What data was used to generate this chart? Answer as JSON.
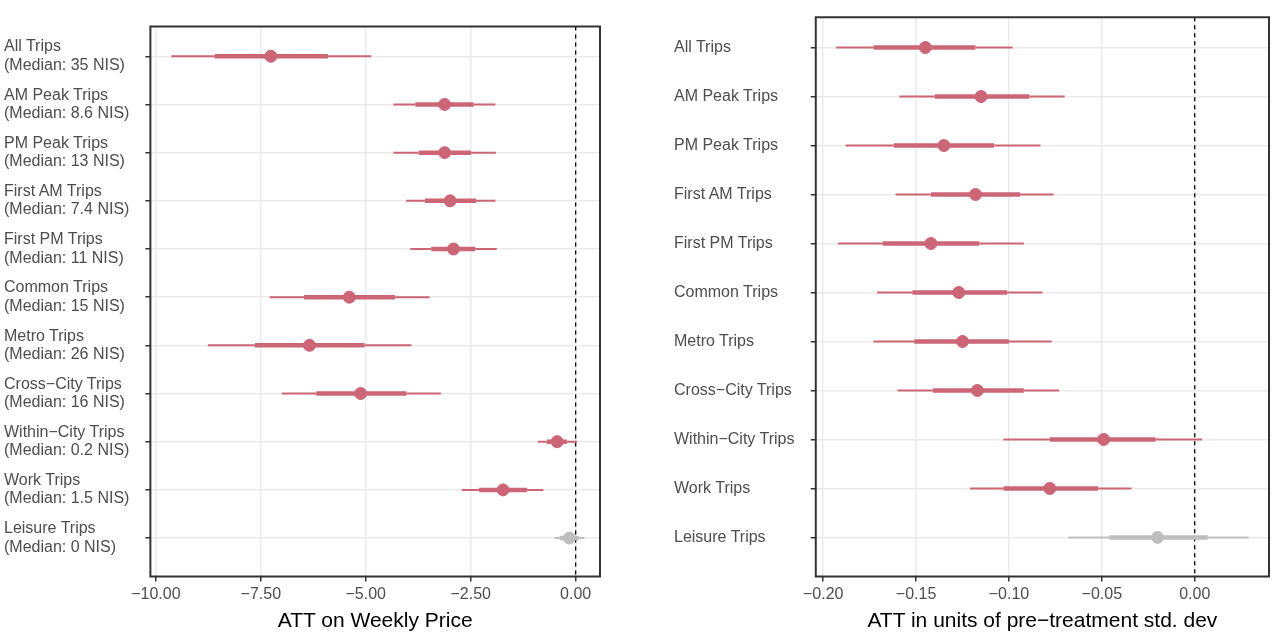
{
  "chart_data": [
    {
      "type": "scatter",
      "orientation": "horizontal",
      "xlabel": "ATT on Weekly Price",
      "categories": [
        "All Trips\n(Median: 35 NIS)",
        "AM Peak Trips\n(Median: 8.6 NIS)",
        "PM Peak Trips\n(Median: 13 NIS)",
        "First AM Trips\n(Median: 7.4 NIS)",
        "First PM Trips\n(Median: 11 NIS)",
        "Common Trips\n(Median: 15 NIS)",
        "Metro Trips\n(Median: 26 NIS)",
        "Cross−City Trips\n(Median: 16 NIS)",
        "Within−City Trips\n(Median: 0.2 NIS)",
        "Work Trips\n(Median: 1.5 NIS)",
        "Leisure Trips\n(Median: 0 NIS)"
      ],
      "series": [
        {
          "type": "box",
          "colors": [
            "#cc6677",
            "#cc6677",
            "#cc6677",
            "#cc6677",
            "#cc6677",
            "#cc6677",
            "#cc6677",
            "#cc6677",
            "#cc6677",
            "#cc6677",
            "#bebebe"
          ],
          "boxes": [
            {
              "low": -9.63,
              "q1": -8.6,
              "median": -7.26,
              "q3": -5.9,
              "high": -4.87
            },
            {
              "low": -4.34,
              "q1": -3.82,
              "median": -3.12,
              "q3": -2.43,
              "high": -1.91
            },
            {
              "low": -4.34,
              "q1": -3.74,
              "median": -3.12,
              "q3": -2.49,
              "high": -1.9
            },
            {
              "low": -4.04,
              "q1": -3.59,
              "median": -2.99,
              "q3": -2.37,
              "high": -1.91
            },
            {
              "low": -3.94,
              "q1": -3.44,
              "median": -2.91,
              "q3": -2.39,
              "high": -1.88
            },
            {
              "low": -7.29,
              "q1": -6.47,
              "median": -5.39,
              "q3": -4.3,
              "high": -3.48
            },
            {
              "low": -8.76,
              "q1": -7.64,
              "median": -6.34,
              "q3": -5.03,
              "high": -3.91
            },
            {
              "low": -7.0,
              "q1": -6.18,
              "median": -5.12,
              "q3": -4.03,
              "high": -3.21
            },
            {
              "low": -0.9,
              "q1": -0.69,
              "median": -0.44,
              "q3": -0.21,
              "high": 0.03
            },
            {
              "low": -2.71,
              "q1": -2.3,
              "median": -1.73,
              "q3": -1.16,
              "high": -0.77
            },
            {
              "low": -0.5,
              "q1": -0.38,
              "median": -0.15,
              "q3": 0.08,
              "high": 0.21
            }
          ]
        },
        {
          "marker": "circle",
          "colors": [
            "#cc6677",
            "#cc6677",
            "#cc6677",
            "#cc6677",
            "#cc6677",
            "#cc6677",
            "#cc6677",
            "#cc6677",
            "#cc6677",
            "#cc6677",
            "#bebebe"
          ],
          "values": [
            -7.26,
            -3.12,
            -3.12,
            -2.99,
            -2.91,
            -5.39,
            -6.34,
            -5.12,
            -0.44,
            -1.73,
            -0.15
          ]
        }
      ],
      "xlim": [
        -10.13,
        0.58
      ],
      "xticks": [
        {
          "value": -10,
          "label": "−10.00"
        },
        {
          "value": -7.5,
          "label": "−7.50"
        },
        {
          "value": -5,
          "label": "−5.00"
        },
        {
          "value": -2.5,
          "label": "−2.50"
        },
        {
          "value": 0,
          "label": "0.00"
        }
      ],
      "ref_lines": [
        {
          "axis": "x",
          "value": 0,
          "color": "#000000",
          "line_style": "dashed"
        }
      ],
      "grid": true,
      "legend": false
    },
    {
      "type": "scatter",
      "orientation": "horizontal",
      "xlabel": "ATT in units of pre−treatment std. dev",
      "categories": [
        "All Trips",
        "AM Peak Trips",
        "PM Peak Trips",
        "First AM Trips",
        "First PM Trips",
        "Common Trips",
        "Metro Trips",
        "Cross−City Trips",
        "Within−City Trips",
        "Work Trips",
        "Leisure Trips"
      ],
      "series": [
        {
          "type": "box",
          "colors": [
            "#cc6677",
            "#cc6677",
            "#cc6677",
            "#cc6677",
            "#cc6677",
            "#cc6677",
            "#cc6677",
            "#cc6677",
            "#cc6677",
            "#cc6677",
            "#bebebe"
          ],
          "boxes": [
            {
              "low": -0.193,
              "q1": -0.173,
              "median": -0.145,
              "q3": -0.118,
              "high": -0.098
            },
            {
              "low": -0.159,
              "q1": -0.14,
              "median": -0.115,
              "q3": -0.089,
              "high": -0.07
            },
            {
              "low": -0.188,
              "q1": -0.162,
              "median": -0.135,
              "q3": -0.108,
              "high": -0.083
            },
            {
              "low": -0.161,
              "q1": -0.142,
              "median": -0.118,
              "q3": -0.094,
              "high": -0.076
            },
            {
              "low": -0.192,
              "q1": -0.168,
              "median": -0.142,
              "q3": -0.116,
              "high": -0.092
            },
            {
              "low": -0.171,
              "q1": -0.152,
              "median": -0.127,
              "q3": -0.101,
              "high": -0.082
            },
            {
              "low": -0.173,
              "q1": -0.151,
              "median": -0.125,
              "q3": -0.1,
              "high": -0.077
            },
            {
              "low": -0.16,
              "q1": -0.141,
              "median": -0.117,
              "q3": -0.092,
              "high": -0.073
            },
            {
              "low": -0.103,
              "q1": -0.078,
              "median": -0.049,
              "q3": -0.021,
              "high": 0.004
            },
            {
              "low": -0.121,
              "q1": -0.103,
              "median": -0.078,
              "q3": -0.052,
              "high": -0.034
            },
            {
              "low": -0.068,
              "q1": -0.046,
              "median": -0.02,
              "q3": 0.007,
              "high": 0.029
            }
          ]
        },
        {
          "marker": "circle",
          "colors": [
            "#cc6677",
            "#cc6677",
            "#cc6677",
            "#cc6677",
            "#cc6677",
            "#cc6677",
            "#cc6677",
            "#cc6677",
            "#cc6677",
            "#cc6677",
            "#bebebe"
          ],
          "values": [
            -0.145,
            -0.115,
            -0.135,
            -0.118,
            -0.142,
            -0.127,
            -0.125,
            -0.117,
            -0.049,
            -0.078,
            -0.02
          ]
        }
      ],
      "xlim": [
        -0.204,
        0.04
      ],
      "xticks": [
        {
          "value": -0.2,
          "label": "−0.20"
        },
        {
          "value": -0.15,
          "label": "−0.15"
        },
        {
          "value": -0.1,
          "label": "−0.10"
        },
        {
          "value": -0.05,
          "label": "−0.05"
        },
        {
          "value": 0,
          "label": "0.00"
        }
      ],
      "ref_lines": [
        {
          "axis": "x",
          "value": 0,
          "color": "#000000",
          "line_style": "dashed"
        }
      ],
      "grid": true,
      "legend": false
    }
  ]
}
